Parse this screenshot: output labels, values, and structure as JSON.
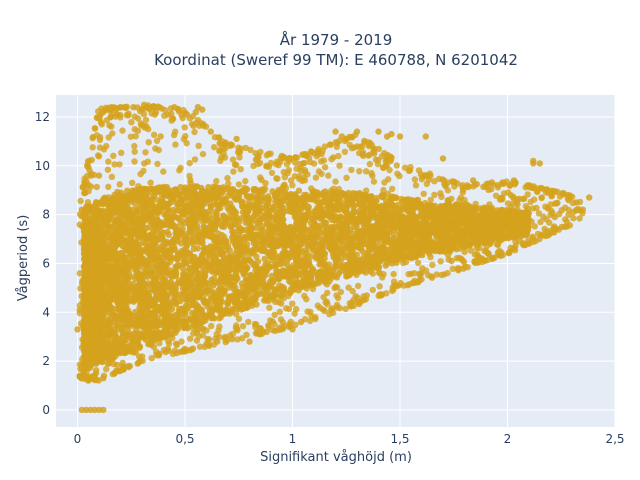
{
  "chart_data": {
    "type": "scatter",
    "title_line1": "År 1979 - 2019",
    "title_line2": "Koordinat (Sweref 99 TM): E 460788, N 6201042",
    "xlabel": "Signifikant våghöjd (m)",
    "ylabel": "Vågperiod (s)",
    "xlim": [
      -0.1,
      2.5
    ],
    "ylim": [
      -0.7,
      12.9
    ],
    "x_ticks": [
      0,
      0.5,
      1,
      1.5,
      2,
      2.5
    ],
    "x_tick_labels": [
      "0",
      "0,5",
      "1",
      "1,5",
      "2",
      "2,5"
    ],
    "y_ticks": [
      0,
      2,
      4,
      6,
      8,
      10,
      12
    ],
    "y_tick_labels": [
      "0",
      "2",
      "4",
      "6",
      "8",
      "10",
      "12"
    ],
    "grid": true,
    "legend": "none",
    "colors": {
      "marker": "#d4a21d",
      "plot_bg": "#e5ecf6",
      "grid": "#ffffff"
    },
    "series": [
      {
        "envelope": {
          "x": [
            0.01,
            0.1,
            0.2,
            0.3,
            0.5,
            0.7,
            1.0,
            1.3,
            1.5,
            1.8,
            2.0,
            2.2,
            2.35
          ],
          "y_min": [
            1.3,
            1.2,
            1.6,
            2.0,
            2.4,
            2.8,
            3.4,
            4.3,
            5.0,
            5.8,
            6.4,
            7.2,
            7.8
          ],
          "y_max": [
            8.5,
            12.4,
            12.4,
            12.5,
            12.3,
            10.9,
            10.3,
            11.3,
            10.1,
            9.2,
            9.4,
            9.0,
            8.7
          ]
        },
        "core_band": {
          "x": [
            0.03,
            0.2,
            0.5,
            0.8,
            1.0,
            1.3,
            1.6,
            1.9,
            2.1
          ],
          "y_low": [
            1.6,
            2.2,
            3.3,
            4.2,
            4.8,
            5.6,
            6.3,
            6.8,
            7.2
          ],
          "y_high": [
            8.3,
            9.0,
            9.2,
            9.1,
            9.0,
            8.9,
            8.6,
            8.3,
            8.1
          ]
        },
        "points": [
          [
            0.02,
            0.0
          ],
          [
            0.04,
            0.0
          ],
          [
            0.06,
            0.0
          ],
          [
            0.08,
            0.0
          ],
          [
            0.1,
            0.0
          ],
          [
            0.12,
            0.0
          ],
          [
            0.01,
            1.4
          ],
          [
            0.0,
            3.3
          ],
          [
            0.01,
            4.1
          ],
          [
            0.1,
            9.6
          ],
          [
            0.12,
            12.2
          ],
          [
            0.14,
            12.3
          ],
          [
            0.2,
            12.4
          ],
          [
            0.26,
            12.4
          ],
          [
            0.31,
            12.5
          ],
          [
            0.36,
            12.1
          ],
          [
            0.45,
            12.4
          ],
          [
            0.56,
            12.4
          ],
          [
            0.58,
            12.3
          ],
          [
            0.62,
            11.4
          ],
          [
            0.66,
            10.6
          ],
          [
            0.74,
            11.1
          ],
          [
            0.88,
            10.0
          ],
          [
            0.95,
            10.4
          ],
          [
            1.05,
            10.1
          ],
          [
            1.12,
            10.5
          ],
          [
            1.2,
            11.4
          ],
          [
            1.23,
            11.2
          ],
          [
            1.3,
            11.4
          ],
          [
            1.44,
            11.2
          ],
          [
            1.46,
            11.3
          ],
          [
            1.5,
            11.2
          ],
          [
            1.7,
            10.3
          ],
          [
            1.84,
            9.4
          ],
          [
            2.03,
            9.4
          ],
          [
            2.12,
            10.2
          ],
          [
            2.15,
            10.1
          ],
          [
            2.2,
            8.9
          ],
          [
            2.28,
            8.8
          ],
          [
            2.32,
            8.5
          ],
          [
            2.38,
            8.7
          ],
          [
            2.35,
            8.2
          ],
          [
            2.22,
            7.9
          ],
          [
            2.05,
            7.2
          ],
          [
            1.92,
            6.8
          ],
          [
            1.74,
            6.1
          ],
          [
            1.6,
            5.6
          ],
          [
            1.48,
            5.1
          ],
          [
            1.33,
            4.5
          ],
          [
            1.18,
            4.1
          ],
          [
            1.04,
            3.6
          ],
          [
            0.88,
            3.2
          ],
          [
            0.72,
            2.9
          ],
          [
            0.65,
            2.8
          ],
          [
            0.5,
            2.5
          ],
          [
            0.38,
            2.3
          ],
          [
            0.28,
            1.9
          ],
          [
            0.18,
            1.6
          ],
          [
            0.12,
            1.3
          ],
          [
            0.05,
            1.2
          ],
          [
            1.0,
            3.3
          ],
          [
            0.8,
            2.8
          ],
          [
            0.6,
            2.7
          ],
          [
            0.42,
            2.5
          ],
          [
            2.12,
            10.1
          ],
          [
            1.62,
            11.2
          ],
          [
            1.4,
            11.4
          ],
          [
            0.55,
            12.2
          ],
          [
            0.02,
            8.2
          ]
        ]
      }
    ]
  }
}
